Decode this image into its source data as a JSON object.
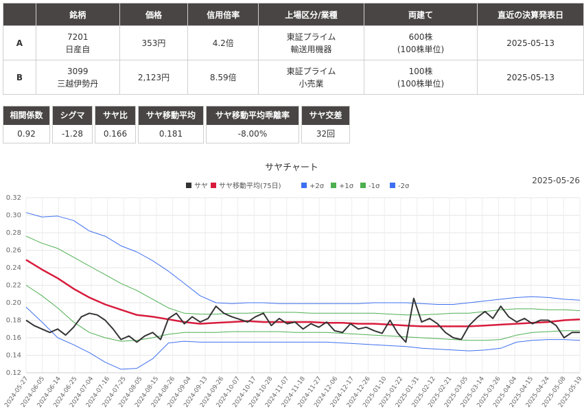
{
  "table": {
    "headers": [
      "",
      "銘柄",
      "価格",
      "信用倍率",
      "上場区分/業種",
      "両建て",
      "直近の決算発表日"
    ],
    "rows": [
      {
        "label": "A",
        "code": "7201",
        "name": "日産自",
        "price": "353円",
        "margin": "4.2倍",
        "market": "東証プライム",
        "sector": "輸送用機器",
        "hedge": "600株",
        "unit": "(100株単位)",
        "date": "2025-05-13"
      },
      {
        "label": "B",
        "code": "3099",
        "name": "三越伊勢丹",
        "price": "2,123円",
        "margin": "8.59倍",
        "market": "東証プライム",
        "sector": "小売業",
        "hedge": "100株",
        "unit": "(100株単位)",
        "date": "2025-05-13"
      }
    ]
  },
  "metrics": [
    {
      "label": "相関係数",
      "value": "0.92"
    },
    {
      "label": "シグマ",
      "value": "-1.28"
    },
    {
      "label": "サヤ比",
      "value": "0.166"
    },
    {
      "label": "サヤ移動平均",
      "value": "0.181"
    },
    {
      "label": "サヤ移動平均乖離率",
      "value": "-8.00%"
    },
    {
      "label": "サヤ交差",
      "value": "32回"
    }
  ],
  "chart_data": {
    "type": "line",
    "title": "サヤチャート",
    "subtitle": "2025-05-26",
    "ylim": [
      0.12,
      0.32
    ],
    "yticks": [
      "0.12",
      "0.14",
      "0.16",
      "0.18",
      "0.20",
      "0.22",
      "0.24",
      "0.26",
      "0.28",
      "0.30",
      "0.32"
    ],
    "xticks": [
      "2024-05-27",
      "2024-06-05",
      "2024-06-14",
      "2024-06-25",
      "2024-07-04",
      "2024-07-16",
      "2024-07-25",
      "2024-08-05",
      "2024-08-15",
      "2024-08-26",
      "2024-09-04",
      "2024-09-13",
      "2024-09-26",
      "2024-10-07",
      "2024-10-17",
      "2024-10-28",
      "2024-11-07",
      "2024-11-18",
      "2024-11-27",
      "2024-12-06",
      "2024-12-17",
      "2024-12-26",
      "2025-01-10",
      "2025-01-22",
      "2025-01-31",
      "2025-02-12",
      "2025-02-21",
      "2025-03-05",
      "2025-03-14",
      "2025-03-26",
      "2025-04-04",
      "2025-04-15",
      "2025-04-24",
      "2025-05-08",
      "2025-05-19"
    ],
    "legend_position": "top",
    "grid": true,
    "series": [
      {
        "name": "サヤ",
        "color": "#333333",
        "width": 2,
        "points": [
          [
            0,
            0.18
          ],
          [
            1,
            0.174
          ],
          [
            2,
            0.17
          ],
          [
            3,
            0.166
          ],
          [
            4,
            0.17
          ],
          [
            5,
            0.163
          ],
          [
            6,
            0.172
          ],
          [
            7,
            0.184
          ],
          [
            8,
            0.188
          ],
          [
            9,
            0.186
          ],
          [
            10,
            0.18
          ],
          [
            11,
            0.17
          ],
          [
            12,
            0.158
          ],
          [
            13,
            0.162
          ],
          [
            14,
            0.155
          ],
          [
            15,
            0.162
          ],
          [
            16,
            0.166
          ],
          [
            17,
            0.158
          ],
          [
            18,
            0.182
          ],
          [
            19,
            0.188
          ],
          [
            20,
            0.176
          ],
          [
            21,
            0.184
          ],
          [
            22,
            0.178
          ],
          [
            23,
            0.182
          ],
          [
            24,
            0.196
          ],
          [
            25,
            0.188
          ],
          [
            26,
            0.184
          ],
          [
            27,
            0.181
          ],
          [
            28,
            0.178
          ],
          [
            29,
            0.184
          ],
          [
            30,
            0.188
          ],
          [
            31,
            0.174
          ],
          [
            32,
            0.182
          ],
          [
            33,
            0.176
          ],
          [
            34,
            0.178
          ],
          [
            35,
            0.17
          ],
          [
            36,
            0.176
          ],
          [
            37,
            0.172
          ],
          [
            38,
            0.178
          ],
          [
            39,
            0.168
          ],
          [
            40,
            0.166
          ],
          [
            41,
            0.176
          ],
          [
            42,
            0.17
          ],
          [
            43,
            0.172
          ],
          [
            44,
            0.168
          ],
          [
            45,
            0.165
          ],
          [
            46,
            0.18
          ],
          [
            47,
            0.165
          ],
          [
            48,
            0.155
          ],
          [
            49,
            0.205
          ],
          [
            50,
            0.178
          ],
          [
            51,
            0.182
          ],
          [
            52,
            0.176
          ],
          [
            53,
            0.166
          ],
          [
            54,
            0.16
          ],
          [
            55,
            0.158
          ],
          [
            56,
            0.174
          ],
          [
            57,
            0.183
          ],
          [
            58,
            0.19
          ],
          [
            59,
            0.182
          ],
          [
            60,
            0.196
          ],
          [
            61,
            0.184
          ],
          [
            62,
            0.178
          ],
          [
            63,
            0.182
          ],
          [
            64,
            0.176
          ],
          [
            65,
            0.18
          ],
          [
            66,
            0.18
          ],
          [
            67,
            0.174
          ],
          [
            68,
            0.16
          ],
          [
            69,
            0.166
          ],
          [
            70,
            0.166
          ]
        ]
      },
      {
        "name": "サヤ移動平均(75日)",
        "color": "#d81b3c",
        "width": 2.5,
        "points": [
          [
            0,
            0.249
          ],
          [
            2,
            0.238
          ],
          [
            4,
            0.228
          ],
          [
            6,
            0.216
          ],
          [
            8,
            0.206
          ],
          [
            10,
            0.198
          ],
          [
            12,
            0.192
          ],
          [
            14,
            0.186
          ],
          [
            16,
            0.184
          ],
          [
            18,
            0.181
          ],
          [
            20,
            0.178
          ],
          [
            22,
            0.176
          ],
          [
            24,
            0.177
          ],
          [
            26,
            0.178
          ],
          [
            28,
            0.179
          ],
          [
            30,
            0.178
          ],
          [
            32,
            0.178
          ],
          [
            34,
            0.178
          ],
          [
            36,
            0.178
          ],
          [
            38,
            0.177
          ],
          [
            40,
            0.177
          ],
          [
            42,
            0.176
          ],
          [
            44,
            0.176
          ],
          [
            46,
            0.175
          ],
          [
            48,
            0.174
          ],
          [
            50,
            0.173
          ],
          [
            52,
            0.173
          ],
          [
            54,
            0.173
          ],
          [
            56,
            0.173
          ],
          [
            58,
            0.174
          ],
          [
            60,
            0.175
          ],
          [
            62,
            0.176
          ],
          [
            64,
            0.177
          ],
          [
            66,
            0.178
          ],
          [
            68,
            0.18
          ],
          [
            70,
            0.181
          ]
        ]
      },
      {
        "name": "+2σ",
        "color": "#3d6fef",
        "width": 1,
        "points": [
          [
            0,
            0.303
          ],
          [
            2,
            0.298
          ],
          [
            4,
            0.299
          ],
          [
            6,
            0.294
          ],
          [
            8,
            0.282
          ],
          [
            10,
            0.276
          ],
          [
            12,
            0.265
          ],
          [
            14,
            0.258
          ],
          [
            16,
            0.248
          ],
          [
            18,
            0.236
          ],
          [
            20,
            0.222
          ],
          [
            22,
            0.208
          ],
          [
            24,
            0.2
          ],
          [
            26,
            0.199
          ],
          [
            28,
            0.2
          ],
          [
            30,
            0.2
          ],
          [
            32,
            0.199
          ],
          [
            34,
            0.199
          ],
          [
            36,
            0.199
          ],
          [
            38,
            0.199
          ],
          [
            40,
            0.199
          ],
          [
            42,
            0.199
          ],
          [
            44,
            0.2
          ],
          [
            46,
            0.2
          ],
          [
            48,
            0.2
          ],
          [
            50,
            0.199
          ],
          [
            52,
            0.198
          ],
          [
            54,
            0.198
          ],
          [
            56,
            0.2
          ],
          [
            58,
            0.202
          ],
          [
            60,
            0.204
          ],
          [
            62,
            0.206
          ],
          [
            64,
            0.207
          ],
          [
            66,
            0.206
          ],
          [
            68,
            0.204
          ],
          [
            70,
            0.203
          ]
        ]
      },
      {
        "name": "+1σ",
        "color": "#4caf50",
        "width": 1,
        "points": [
          [
            0,
            0.276
          ],
          [
            2,
            0.268
          ],
          [
            4,
            0.262
          ],
          [
            6,
            0.252
          ],
          [
            8,
            0.242
          ],
          [
            10,
            0.232
          ],
          [
            12,
            0.222
          ],
          [
            14,
            0.214
          ],
          [
            16,
            0.204
          ],
          [
            18,
            0.194
          ],
          [
            20,
            0.188
          ],
          [
            22,
            0.187
          ],
          [
            24,
            0.187
          ],
          [
            26,
            0.188
          ],
          [
            28,
            0.188
          ],
          [
            30,
            0.189
          ],
          [
            32,
            0.189
          ],
          [
            34,
            0.189
          ],
          [
            36,
            0.188
          ],
          [
            38,
            0.188
          ],
          [
            40,
            0.188
          ],
          [
            42,
            0.188
          ],
          [
            44,
            0.188
          ],
          [
            46,
            0.187
          ],
          [
            48,
            0.186
          ],
          [
            50,
            0.186
          ],
          [
            52,
            0.187
          ],
          [
            54,
            0.188
          ],
          [
            56,
            0.188
          ],
          [
            58,
            0.19
          ],
          [
            60,
            0.192
          ],
          [
            62,
            0.193
          ],
          [
            64,
            0.193
          ],
          [
            66,
            0.192
          ],
          [
            68,
            0.192
          ],
          [
            70,
            0.191
          ]
        ]
      },
      {
        "name": "-1σ",
        "color": "#4caf50",
        "width": 1,
        "points": [
          [
            0,
            0.22
          ],
          [
            2,
            0.208
          ],
          [
            4,
            0.194
          ],
          [
            6,
            0.178
          ],
          [
            8,
            0.166
          ],
          [
            10,
            0.16
          ],
          [
            12,
            0.156
          ],
          [
            14,
            0.157
          ],
          [
            16,
            0.16
          ],
          [
            18,
            0.164
          ],
          [
            20,
            0.166
          ],
          [
            22,
            0.166
          ],
          [
            24,
            0.166
          ],
          [
            26,
            0.167
          ],
          [
            28,
            0.167
          ],
          [
            30,
            0.167
          ],
          [
            32,
            0.167
          ],
          [
            34,
            0.166
          ],
          [
            36,
            0.166
          ],
          [
            38,
            0.166
          ],
          [
            40,
            0.165
          ],
          [
            42,
            0.164
          ],
          [
            44,
            0.163
          ],
          [
            46,
            0.162
          ],
          [
            48,
            0.161
          ],
          [
            50,
            0.16
          ],
          [
            52,
            0.159
          ],
          [
            54,
            0.158
          ],
          [
            56,
            0.157
          ],
          [
            58,
            0.157
          ],
          [
            60,
            0.158
          ],
          [
            62,
            0.163
          ],
          [
            64,
            0.166
          ],
          [
            66,
            0.167
          ],
          [
            68,
            0.168
          ],
          [
            70,
            0.168
          ]
        ]
      },
      {
        "name": "-2σ",
        "color": "#3d6fef",
        "width": 1,
        "points": [
          [
            0,
            0.195
          ],
          [
            2,
            0.178
          ],
          [
            4,
            0.16
          ],
          [
            6,
            0.152
          ],
          [
            8,
            0.143
          ],
          [
            10,
            0.132
          ],
          [
            12,
            0.124
          ],
          [
            14,
            0.125
          ],
          [
            16,
            0.136
          ],
          [
            18,
            0.154
          ],
          [
            20,
            0.156
          ],
          [
            22,
            0.155
          ],
          [
            24,
            0.155
          ],
          [
            26,
            0.155
          ],
          [
            28,
            0.155
          ],
          [
            30,
            0.155
          ],
          [
            32,
            0.155
          ],
          [
            34,
            0.155
          ],
          [
            36,
            0.155
          ],
          [
            38,
            0.155
          ],
          [
            40,
            0.154
          ],
          [
            42,
            0.153
          ],
          [
            44,
            0.152
          ],
          [
            46,
            0.151
          ],
          [
            48,
            0.15
          ],
          [
            50,
            0.148
          ],
          [
            52,
            0.147
          ],
          [
            54,
            0.146
          ],
          [
            56,
            0.145
          ],
          [
            58,
            0.146
          ],
          [
            60,
            0.148
          ],
          [
            62,
            0.155
          ],
          [
            64,
            0.157
          ],
          [
            66,
            0.158
          ],
          [
            68,
            0.158
          ],
          [
            70,
            0.157
          ]
        ]
      }
    ]
  }
}
